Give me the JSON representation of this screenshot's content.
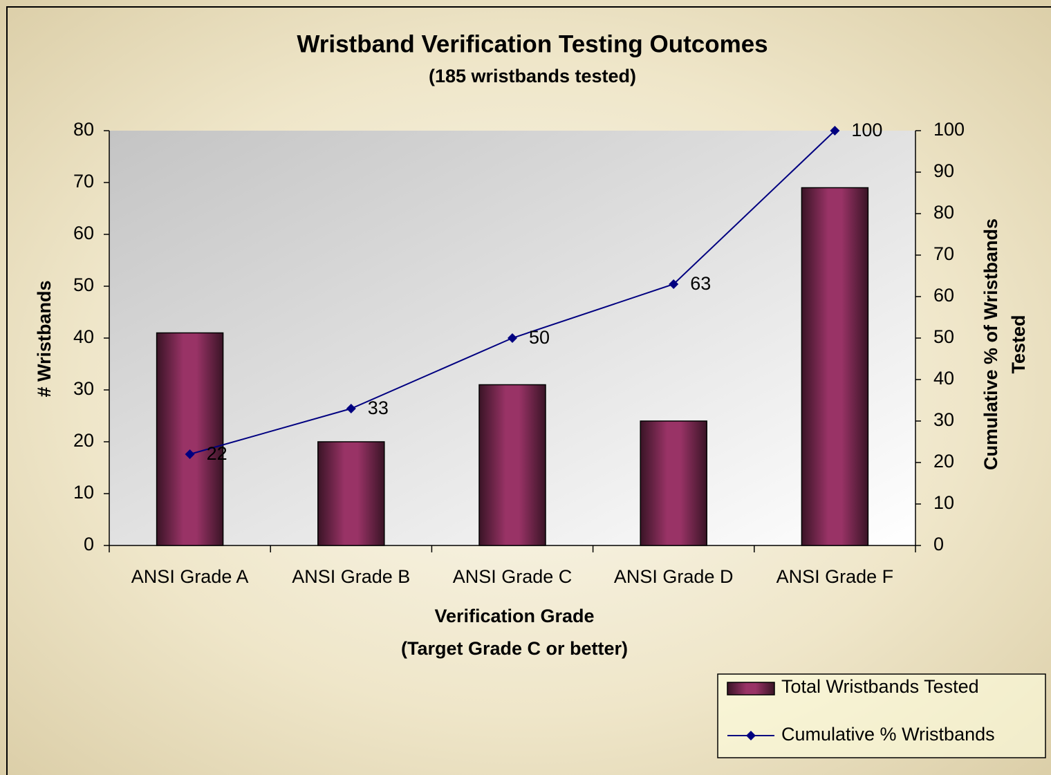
{
  "chart_data": {
    "type": "bar",
    "title": "Wristband Verification Testing Outcomes",
    "subtitle": "(185 wristbands tested)",
    "x_label": [
      "Verification Grade",
      "(Target Grade C or better)"
    ],
    "y_label": "# Wristbands",
    "y2_label": [
      "Cumulative % of Wristbands",
      "Tested"
    ],
    "categories": [
      "ANSI Grade A",
      "ANSI Grade B",
      "ANSI Grade C",
      "ANSI Grade D",
      "ANSI Grade F"
    ],
    "series": [
      {
        "name": "Total Wristbands Tested",
        "type": "bar",
        "color": "#993366",
        "values": [
          41,
          20,
          31,
          24,
          69
        ]
      },
      {
        "name": "Cumulative % Wristbands",
        "type": "line",
        "axis": "y2",
        "color": "#000080",
        "values": [
          22,
          33,
          50,
          63,
          100
        ]
      }
    ],
    "ylim": [
      0,
      80
    ],
    "yticks": [
      0,
      10,
      20,
      30,
      40,
      50,
      60,
      70,
      80
    ],
    "y2lim": [
      0,
      100
    ],
    "y2ticks": [
      0,
      10,
      20,
      30,
      40,
      50,
      60,
      70,
      80,
      90,
      100
    ],
    "legend": "bottom-right"
  }
}
